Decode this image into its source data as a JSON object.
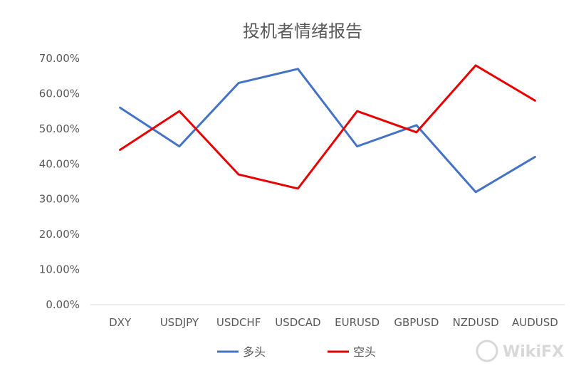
{
  "chart_data": {
    "type": "line",
    "title": "投机者情绪报告",
    "xlabel": "",
    "ylabel": "",
    "categories": [
      "DXY",
      "USDJPY",
      "USDCHF",
      "USDCAD",
      "EURUSD",
      "GBPUSD",
      "NZDUSD",
      "AUDUSD"
    ],
    "y_ticks": [
      "0.00%",
      "10.00%",
      "20.00%",
      "30.00%",
      "40.00%",
      "50.00%",
      "60.00%",
      "70.00%"
    ],
    "ylim": [
      0,
      70
    ],
    "grid": false,
    "legend_position": "bottom",
    "series": [
      {
        "name": "多头",
        "color": "#4472C4",
        "values": [
          56,
          45,
          63,
          67,
          45,
          51,
          32,
          42
        ]
      },
      {
        "name": "空头",
        "color": "#E80000",
        "values": [
          44,
          55,
          37,
          33,
          55,
          49,
          68,
          58
        ]
      }
    ]
  },
  "watermark": {
    "text": "WikiFX"
  }
}
